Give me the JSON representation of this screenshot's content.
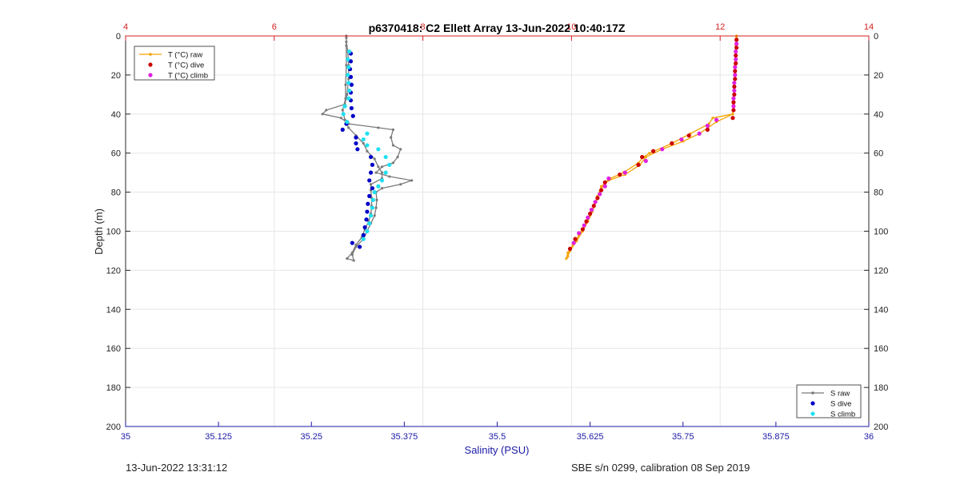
{
  "chart_data": {
    "type": "scatter",
    "title": "p6370418: C2 Ellett Array 13-Jun-2022 10:40:17Z",
    "xlabel": "Salinity (PSU)",
    "ylabel": "Depth (m)",
    "x_bottom": {
      "label": "Salinity (PSU)",
      "range": [
        35,
        36
      ],
      "ticks": [
        35,
        35.125,
        35.25,
        35.375,
        35.5,
        35.625,
        35.75,
        35.875,
        36
      ],
      "tick_labels": [
        "35",
        "35.125",
        "35.25",
        "35.375",
        "35.5",
        "35.625",
        "35.75",
        "35.875",
        "36"
      ],
      "color": "#1a1aa6"
    },
    "x_top": {
      "label": "",
      "range": [
        4,
        14
      ],
      "ticks": [
        4,
        6,
        8,
        10,
        12,
        14
      ],
      "tick_labels": [
        "4",
        "6",
        "8",
        "10",
        "12",
        "14"
      ],
      "color": "#d42020"
    },
    "y": {
      "range": [
        0,
        200
      ],
      "reversed": true,
      "ticks": [
        0,
        20,
        40,
        60,
        80,
        100,
        120,
        140,
        160,
        180,
        200
      ],
      "tick_labels": [
        "0",
        "20",
        "40",
        "60",
        "80",
        "100",
        "120",
        "140",
        "160",
        "180",
        "200"
      ]
    },
    "grid": true,
    "legend_temperature": {
      "placement": "top-left",
      "entries": [
        {
          "label": "T (°C) raw",
          "color": "#f5a300"
        },
        {
          "label": "T (°C) dive",
          "color": "#cc0000"
        },
        {
          "label": "T (°C) climb",
          "color": "#e020e0"
        }
      ]
    },
    "legend_salinity": {
      "placement": "bottom-right",
      "entries": [
        {
          "label": "S raw",
          "color": "#7a7a7a"
        },
        {
          "label": "S dive",
          "color": "#0000c8"
        },
        {
          "label": "S climb",
          "color": "#20e0f0"
        }
      ]
    },
    "series": [
      {
        "name": "S raw",
        "axis": "salinity",
        "style": "line",
        "color": "#7a7a7a",
        "points": [
          [
            35.297,
            0
          ],
          [
            35.297,
            3
          ],
          [
            35.299,
            8
          ],
          [
            35.3,
            15
          ],
          [
            35.3,
            22
          ],
          [
            35.298,
            30
          ],
          [
            35.295,
            35
          ],
          [
            35.27,
            38
          ],
          [
            35.265,
            40
          ],
          [
            35.29,
            42
          ],
          [
            35.3,
            45
          ],
          [
            35.34,
            47
          ],
          [
            35.36,
            48
          ],
          [
            35.357,
            52
          ],
          [
            35.36,
            56
          ],
          [
            35.37,
            58
          ],
          [
            35.366,
            62
          ],
          [
            35.36,
            65
          ],
          [
            35.345,
            67
          ],
          [
            35.337,
            70
          ],
          [
            35.355,
            72
          ],
          [
            35.385,
            74
          ],
          [
            35.37,
            76
          ],
          [
            35.345,
            78
          ],
          [
            35.337,
            80
          ],
          [
            35.338,
            84
          ],
          [
            35.337,
            88
          ],
          [
            35.335,
            92
          ],
          [
            35.33,
            96
          ],
          [
            35.325,
            100
          ],
          [
            35.32,
            104
          ],
          [
            35.31,
            108
          ],
          [
            35.305,
            112
          ],
          [
            35.307,
            115
          ],
          [
            35.298,
            114
          ],
          [
            35.305,
            111
          ],
          [
            35.31,
            107
          ],
          [
            35.318,
            103
          ],
          [
            35.322,
            99
          ],
          [
            35.327,
            95
          ],
          [
            35.33,
            91
          ],
          [
            35.331,
            87
          ],
          [
            35.331,
            83
          ],
          [
            35.33,
            79
          ],
          [
            35.33,
            76
          ],
          [
            35.345,
            73
          ],
          [
            35.345,
            70
          ],
          [
            35.34,
            67
          ],
          [
            35.335,
            63
          ],
          [
            35.325,
            59
          ],
          [
            35.32,
            55
          ],
          [
            35.31,
            51
          ],
          [
            35.3,
            47
          ],
          [
            35.295,
            43
          ],
          [
            35.292,
            38
          ],
          [
            35.296,
            32
          ],
          [
            35.296,
            25
          ],
          [
            35.297,
            15
          ],
          [
            35.297,
            5
          ],
          [
            35.297,
            1
          ]
        ]
      },
      {
        "name": "S dive",
        "axis": "salinity",
        "style": "dots",
        "color": "#0000c8",
        "points": [
          [
            35.303,
            9
          ],
          [
            35.303,
            13
          ],
          [
            35.302,
            17
          ],
          [
            35.303,
            21
          ],
          [
            35.304,
            25
          ],
          [
            35.303,
            29
          ],
          [
            35.303,
            33
          ],
          [
            35.304,
            37
          ],
          [
            35.306,
            41
          ],
          [
            35.297,
            45
          ],
          [
            35.292,
            48
          ],
          [
            35.31,
            52
          ],
          [
            35.31,
            55
          ],
          [
            35.312,
            58
          ],
          [
            35.33,
            62
          ],
          [
            35.332,
            66
          ],
          [
            35.33,
            70
          ],
          [
            35.328,
            74
          ],
          [
            35.332,
            78
          ],
          [
            35.328,
            82
          ],
          [
            35.326,
            86
          ],
          [
            35.325,
            90
          ],
          [
            35.324,
            94
          ],
          [
            35.322,
            98
          ],
          [
            35.32,
            102
          ],
          [
            35.305,
            106
          ],
          [
            35.315,
            108
          ]
        ]
      },
      {
        "name": "S climb",
        "axis": "salinity",
        "style": "dots",
        "color": "#20e0f0",
        "points": [
          [
            35.301,
            8
          ],
          [
            35.299,
            12
          ],
          [
            35.3,
            16
          ],
          [
            35.299,
            20
          ],
          [
            35.3,
            24
          ],
          [
            35.301,
            28
          ],
          [
            35.3,
            32
          ],
          [
            35.295,
            36
          ],
          [
            35.293,
            40
          ],
          [
            35.298,
            44
          ],
          [
            35.325,
            50
          ],
          [
            35.32,
            53
          ],
          [
            35.325,
            56
          ],
          [
            35.34,
            58
          ],
          [
            35.35,
            62
          ],
          [
            35.355,
            66
          ],
          [
            35.35,
            70
          ],
          [
            35.345,
            74
          ],
          [
            35.34,
            77
          ],
          [
            35.335,
            80
          ],
          [
            35.333,
            84
          ],
          [
            35.332,
            88
          ],
          [
            35.33,
            92
          ],
          [
            35.328,
            96
          ],
          [
            35.325,
            100
          ],
          [
            35.32,
            104
          ]
        ]
      },
      {
        "name": "T (°C) raw",
        "axis": "temperature",
        "style": "line",
        "color": "#f5a300",
        "points": [
          [
            12.22,
            0
          ],
          [
            12.21,
            5
          ],
          [
            12.2,
            15
          ],
          [
            12.19,
            25
          ],
          [
            12.18,
            35
          ],
          [
            12.17,
            40
          ],
          [
            11.9,
            42
          ],
          [
            11.85,
            45
          ],
          [
            11.6,
            50
          ],
          [
            11.35,
            55
          ],
          [
            11.05,
            60
          ],
          [
            10.97,
            62
          ],
          [
            10.9,
            65
          ],
          [
            10.7,
            70
          ],
          [
            10.52,
            73
          ],
          [
            10.45,
            75
          ],
          [
            10.38,
            80
          ],
          [
            10.33,
            85
          ],
          [
            10.28,
            90
          ],
          [
            10.22,
            95
          ],
          [
            10.15,
            100
          ],
          [
            10.07,
            105
          ],
          [
            9.98,
            110
          ],
          [
            9.95,
            113
          ],
          [
            9.93,
            114
          ],
          [
            9.95,
            111
          ],
          [
            10.02,
            107
          ],
          [
            10.1,
            102
          ],
          [
            10.18,
            97
          ],
          [
            10.25,
            92
          ],
          [
            10.3,
            87
          ],
          [
            10.35,
            82
          ],
          [
            10.4,
            77
          ],
          [
            10.5,
            74
          ],
          [
            10.72,
            71
          ],
          [
            10.92,
            66
          ],
          [
            11.0,
            62
          ],
          [
            11.22,
            58
          ],
          [
            11.5,
            54
          ],
          [
            11.72,
            50
          ],
          [
            11.95,
            44
          ],
          [
            12.17,
            40
          ],
          [
            12.19,
            30
          ],
          [
            12.2,
            20
          ],
          [
            12.21,
            10
          ],
          [
            12.22,
            1
          ]
        ]
      },
      {
        "name": "T (°C) dive",
        "axis": "temperature",
        "style": "dots",
        "color": "#cc0000",
        "points": [
          [
            12.22,
            2
          ],
          [
            12.22,
            6
          ],
          [
            12.21,
            10
          ],
          [
            12.21,
            14
          ],
          [
            12.2,
            18
          ],
          [
            12.2,
            22
          ],
          [
            12.19,
            26
          ],
          [
            12.19,
            30
          ],
          [
            12.18,
            34
          ],
          [
            12.18,
            38
          ],
          [
            12.17,
            42
          ],
          [
            11.83,
            48
          ],
          [
            11.58,
            51
          ],
          [
            11.35,
            55
          ],
          [
            11.1,
            59
          ],
          [
            10.95,
            62
          ],
          [
            10.9,
            66
          ],
          [
            10.65,
            71
          ],
          [
            10.45,
            75
          ],
          [
            10.4,
            79
          ],
          [
            10.35,
            83
          ],
          [
            10.3,
            87
          ],
          [
            10.25,
            91
          ],
          [
            10.2,
            95
          ],
          [
            10.15,
            99
          ],
          [
            10.05,
            104
          ],
          [
            9.98,
            109
          ]
        ]
      },
      {
        "name": "T (°C) climb",
        "axis": "temperature",
        "style": "dots",
        "color": "#e020e0",
        "points": [
          [
            12.22,
            4
          ],
          [
            12.21,
            8
          ],
          [
            12.21,
            12
          ],
          [
            12.2,
            16
          ],
          [
            12.2,
            20
          ],
          [
            12.19,
            24
          ],
          [
            12.19,
            28
          ],
          [
            12.18,
            32
          ],
          [
            12.18,
            36
          ],
          [
            11.95,
            43
          ],
          [
            11.83,
            46
          ],
          [
            11.72,
            50
          ],
          [
            11.48,
            53
          ],
          [
            11.22,
            58
          ],
          [
            11.0,
            64
          ],
          [
            10.72,
            70
          ],
          [
            10.5,
            73
          ],
          [
            10.45,
            77
          ],
          [
            10.38,
            81
          ],
          [
            10.32,
            85
          ],
          [
            10.27,
            89
          ],
          [
            10.22,
            93
          ],
          [
            10.17,
            97
          ],
          [
            10.1,
            101
          ],
          [
            10.03,
            106
          ]
        ]
      }
    ]
  },
  "footer": {
    "left": "13-Jun-2022 13:31:12",
    "right": "SBE s/n 0299, calibration 08 Sep 2019"
  }
}
